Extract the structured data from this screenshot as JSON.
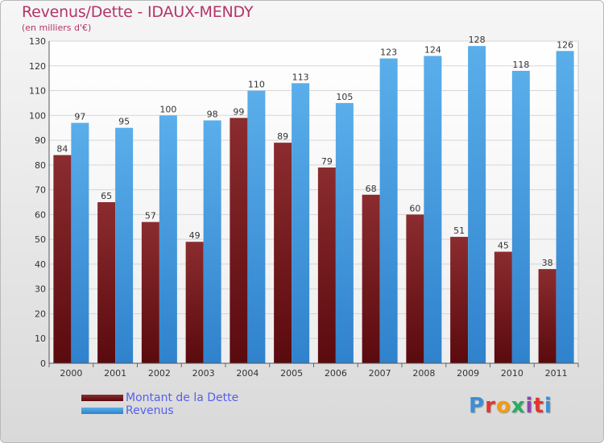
{
  "chart_data": {
    "type": "bar",
    "title": "Revenus/Dette - IDAUX-MENDY",
    "subtitle": "(en milliers d'€)",
    "categories": [
      "2000",
      "2001",
      "2002",
      "2003",
      "2004",
      "2005",
      "2006",
      "2007",
      "2008",
      "2009",
      "2010",
      "2011"
    ],
    "series": [
      {
        "name": "Montant de la Dette",
        "color": "#7a1e22",
        "values": [
          84,
          65,
          57,
          49,
          99,
          89,
          79,
          68,
          60,
          51,
          45,
          38
        ]
      },
      {
        "name": "Revenus",
        "color": "#4aa3e6",
        "values": [
          97,
          95,
          100,
          98,
          110,
          113,
          105,
          123,
          124,
          128,
          118,
          126
        ]
      }
    ],
    "ylim": [
      0,
      130
    ],
    "yticks": [
      0,
      10,
      20,
      30,
      40,
      50,
      60,
      70,
      80,
      90,
      100,
      110,
      120,
      130
    ],
    "grid": true,
    "legend": "bottom-left"
  },
  "brand": {
    "letters": [
      {
        "ch": "P",
        "color": "#3c8fd6"
      },
      {
        "ch": "r",
        "color": "#e3342f"
      },
      {
        "ch": "o",
        "color": "#f39c12"
      },
      {
        "ch": "x",
        "color": "#27ae60"
      },
      {
        "ch": "i",
        "color": "#8e44ad"
      },
      {
        "ch": "t",
        "color": "#e3342f"
      },
      {
        "ch": "i",
        "color": "#3c8fd6"
      }
    ]
  }
}
